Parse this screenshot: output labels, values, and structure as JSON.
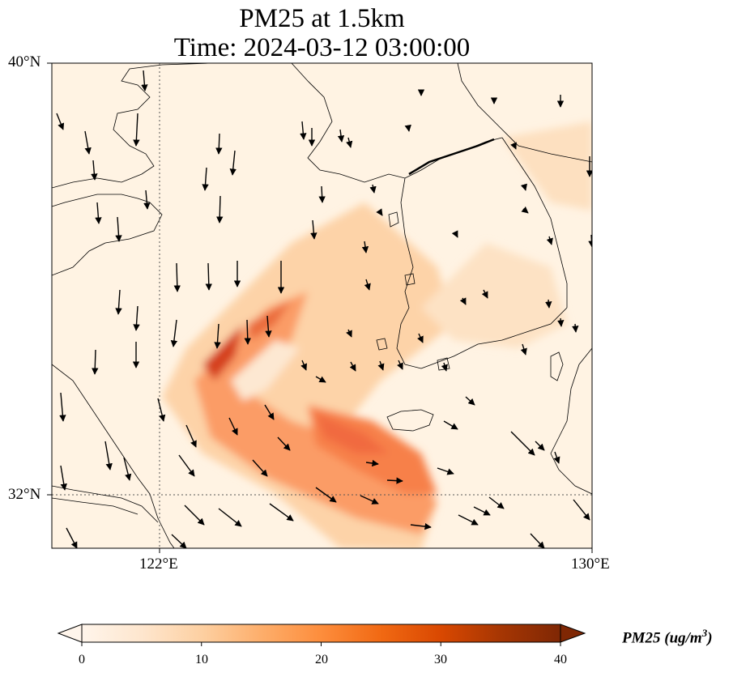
{
  "title": {
    "line1": "PM25 at 1.5km",
    "line2": "Time: 2024-03-12 03:00:00"
  },
  "map": {
    "extent": {
      "lon_min": 119.5,
      "lon_max": 130,
      "lat_min": 31,
      "lat_max": 40
    },
    "lat_ticks": [
      {
        "value": 40,
        "label": "40°N"
      },
      {
        "value": 32,
        "label": "32°N"
      }
    ],
    "lon_ticks": [
      {
        "value": 122,
        "label": "122°E"
      },
      {
        "value": 130,
        "label": "130°E"
      }
    ],
    "gridlines": {
      "lat": [
        32
      ],
      "lon": [
        122
      ],
      "style": "dotted"
    },
    "field": "PM25 concentration, shaded",
    "vectors": "wind arrows"
  },
  "colorbar": {
    "label_main": "PM25 (ug/m",
    "label_sup": "3",
    "label_end": ")",
    "min": 0,
    "max": 40,
    "extend": "both",
    "colormap": [
      "#fff5eb",
      "#fee6ce",
      "#fdd0a2",
      "#fdae6b",
      "#fd8d3c",
      "#f16913",
      "#d94801",
      "#a63603",
      "#7f2704"
    ],
    "ticks": [
      {
        "value": 0,
        "label": "0"
      },
      {
        "value": 10,
        "label": "10"
      },
      {
        "value": 20,
        "label": "20"
      },
      {
        "value": 30,
        "label": "30"
      },
      {
        "value": 40,
        "label": "40"
      }
    ]
  }
}
